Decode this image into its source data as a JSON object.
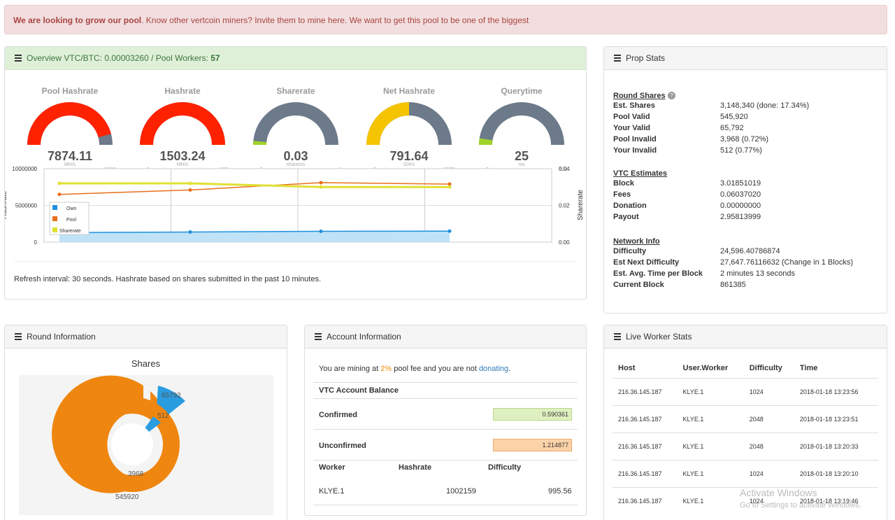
{
  "alert": {
    "bold": "We are looking to grow our pool",
    "text": ". Know other vertcoin miners? Invite them to mine here. We want to get this pool to be one of the biggest"
  },
  "overview": {
    "title_prefix": "Overview VTC/BTC: 0.00003260 / Pool Workers: ",
    "workers": "57",
    "gauges": [
      {
        "title": "Pool Hashrate",
        "value": "7874.11",
        "unit": "MH/s",
        "min": "0",
        "max": "8590",
        "fraction": 0.917,
        "color": "#ff2200"
      },
      {
        "title": "Hashrate",
        "value": "1503.24",
        "unit": "MH/s",
        "min": "0",
        "max": "107",
        "fraction": 1.0,
        "color": "#ff2200"
      },
      {
        "title": "Sharerate",
        "value": "0.03",
        "unit": "shares/s",
        "min": "0",
        "max": "1",
        "fraction": 0.03,
        "color": "#a0d22a"
      },
      {
        "title": "Net Hashrate",
        "value": "791.64",
        "unit": "GH/s",
        "min": "0",
        "max": "1580",
        "fraction": 0.5,
        "color": "#f5c400"
      },
      {
        "title": "Querytime",
        "value": "25",
        "unit": "ms",
        "min": "0",
        "max": "500",
        "fraction": 0.05,
        "color": "#a0d22a"
      }
    ],
    "refresh_text": "Refresh interval: 30 seconds. Hashrate based on shares submitted in the past 10 minutes."
  },
  "chart_data": {
    "type": "line",
    "ylabel": "Hashrate",
    "y2label": "Sharerate",
    "ylim": [
      0,
      10000000
    ],
    "y2lim": [
      0,
      0.04
    ],
    "yticks": [
      "10000000",
      "5000000",
      "0"
    ],
    "y2ticks": [
      "0.04",
      "0.02",
      "0.00"
    ],
    "series": [
      {
        "name": "Own",
        "color": "#1e90dd",
        "axis": "left",
        "values": [
          1300000,
          1380000,
          1480000,
          1500000
        ]
      },
      {
        "name": "Pool",
        "color": "#e8701c",
        "axis": "left",
        "values": [
          6500000,
          7100000,
          8100000,
          7900000
        ]
      },
      {
        "name": "Sharerate",
        "color": "#e0e035",
        "axis": "right",
        "values": [
          0.032,
          0.032,
          0.03,
          0.03
        ]
      }
    ],
    "legend": "bottom-left"
  },
  "prop_stats": {
    "title": "Prop Stats",
    "round_shares_title": "Round Shares",
    "round_shares": [
      {
        "k": "Est. Shares",
        "v": "3,148,340 (done: 17.34%)"
      },
      {
        "k": "Pool Valid",
        "v": "545,920"
      },
      {
        "k": "Your Valid",
        "v": "65,792"
      },
      {
        "k": "Pool Invalid",
        "v": "3,968 (0.72%)"
      },
      {
        "k": "Your Invalid",
        "v": "512 (0.77%)"
      }
    ],
    "vtc_title": "VTC Estimates",
    "vtc": [
      {
        "k": "Block",
        "v": "3.01851019"
      },
      {
        "k": "Fees",
        "v": "0.06037020"
      },
      {
        "k": "Donation",
        "v": "0.00000000"
      },
      {
        "k": "Payout",
        "v": "2.95813999"
      }
    ],
    "net_title": "Network Info",
    "net": [
      {
        "k": "Difficulty",
        "v": "24,596.40786874"
      },
      {
        "k": "Est Next Difficulty",
        "v": "27,647.76116632 (Change in 1 Blocks)"
      },
      {
        "k": "Est. Avg. Time per Block",
        "v": "2 minutes 13 seconds"
      },
      {
        "k": "Current Block",
        "v": "861385"
      }
    ]
  },
  "round_info": {
    "title": "Round Information",
    "chart_title": "Shares",
    "labels": {
      "your_valid": "65792",
      "your_invalid": "512",
      "pool_invalid": "3968",
      "pool_valid": "545920"
    }
  },
  "account": {
    "title": "Account Information",
    "mining_pre": "You are mining at ",
    "fee": "2%",
    "mining_mid": " pool fee and you are not ",
    "donating": "donating",
    "mining_end": ".",
    "balance_title": "VTC Account Balance",
    "confirmed_label": "Confirmed",
    "confirmed": "0.590361",
    "unconfirmed_label": "Unconfirmed",
    "unconfirmed": "1.214877",
    "cols": [
      "Worker",
      "Hashrate",
      "Difficulty"
    ],
    "row": {
      "worker": "KLYE.1",
      "hashrate": "1002159",
      "difficulty": "995.56"
    }
  },
  "live": {
    "title": "Live Worker Stats",
    "cols": [
      "Host",
      "User.Worker",
      "Difficulty",
      "Time"
    ],
    "rows": [
      [
        "216.36.145.187",
        "KLYE.1",
        "1024",
        "2018-01-18 13:23:56"
      ],
      [
        "216.36.145.187",
        "KLYE.1",
        "2048",
        "2018-01-18 13:23:51"
      ],
      [
        "216.36.145.187",
        "KLYE.1",
        "2048",
        "2018-01-18 13:20:33"
      ],
      [
        "216.36.145.187",
        "KLYE.1",
        "1024",
        "2018-01-18 13:20:10"
      ],
      [
        "216.36.145.187",
        "KLYE.1",
        "1024",
        "2018-01-18 13:19:46"
      ]
    ]
  },
  "watermark": {
    "line1": "Activate Windows",
    "line2": "Go to Settings to activate Windows."
  }
}
